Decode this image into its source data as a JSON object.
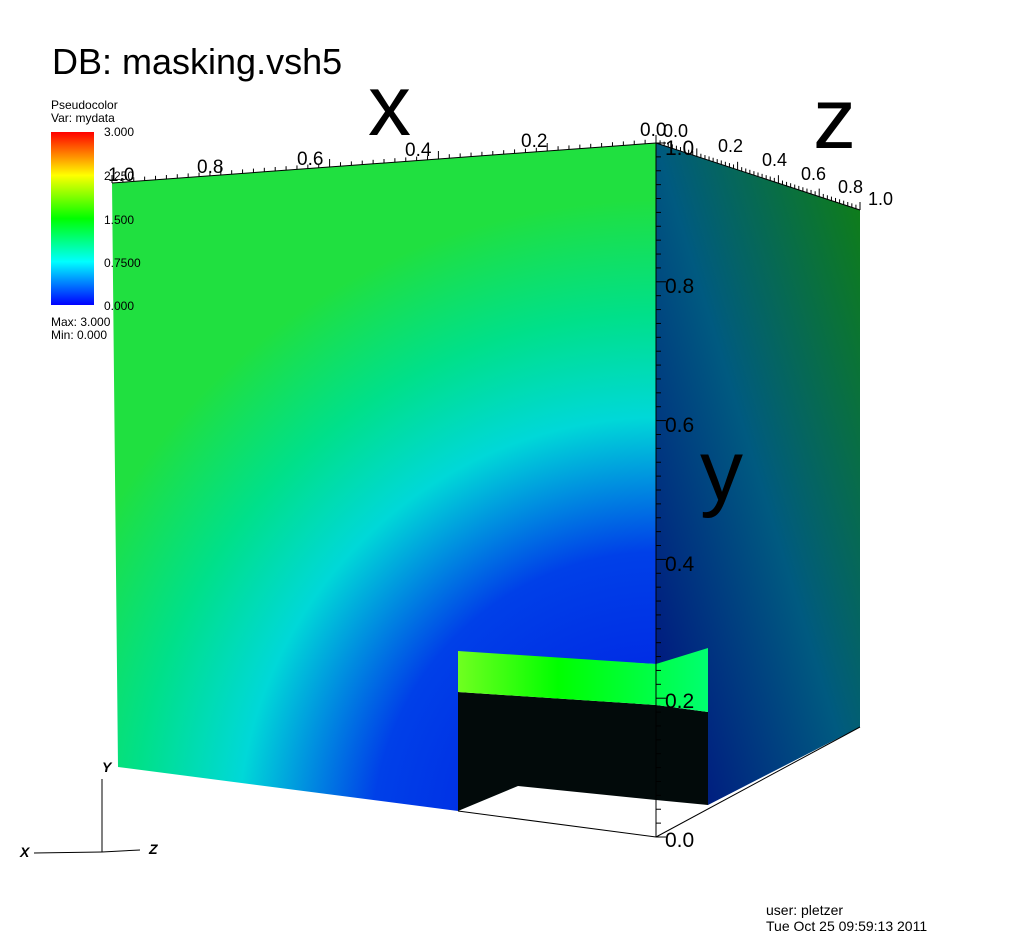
{
  "title": "DB: masking.vsh5",
  "legend": {
    "plot_type": "Pseudocolor",
    "variable": "Var: mydata",
    "ticks": [
      "3.000",
      "2.250",
      "1.500",
      "0.7500",
      "0.000"
    ],
    "max": "Max:  3.000",
    "min": "Min:  0.000",
    "colors": [
      "#ff0000",
      "#ffff00",
      "#00ff00",
      "#00ffff",
      "#0000ff"
    ]
  },
  "axes": {
    "x_title": "x",
    "y_title": "y",
    "z_title": "z",
    "x_ticks": [
      "0.0",
      "0.2",
      "0.4",
      "0.6",
      "0.8",
      "1.0"
    ],
    "y_ticks": [
      "0.0",
      "0.2",
      "0.4",
      "0.6",
      "0.8",
      "1.0"
    ],
    "z_ticks": [
      "0.0",
      "0.2",
      "0.4",
      "0.6",
      "0.8",
      "1.0"
    ]
  },
  "triad": {
    "x": "X",
    "y": "Y",
    "z": "Z"
  },
  "footer": {
    "user": "user: pletzer",
    "timestamp": "Tue Oct 25 09:59:13 2011"
  }
}
